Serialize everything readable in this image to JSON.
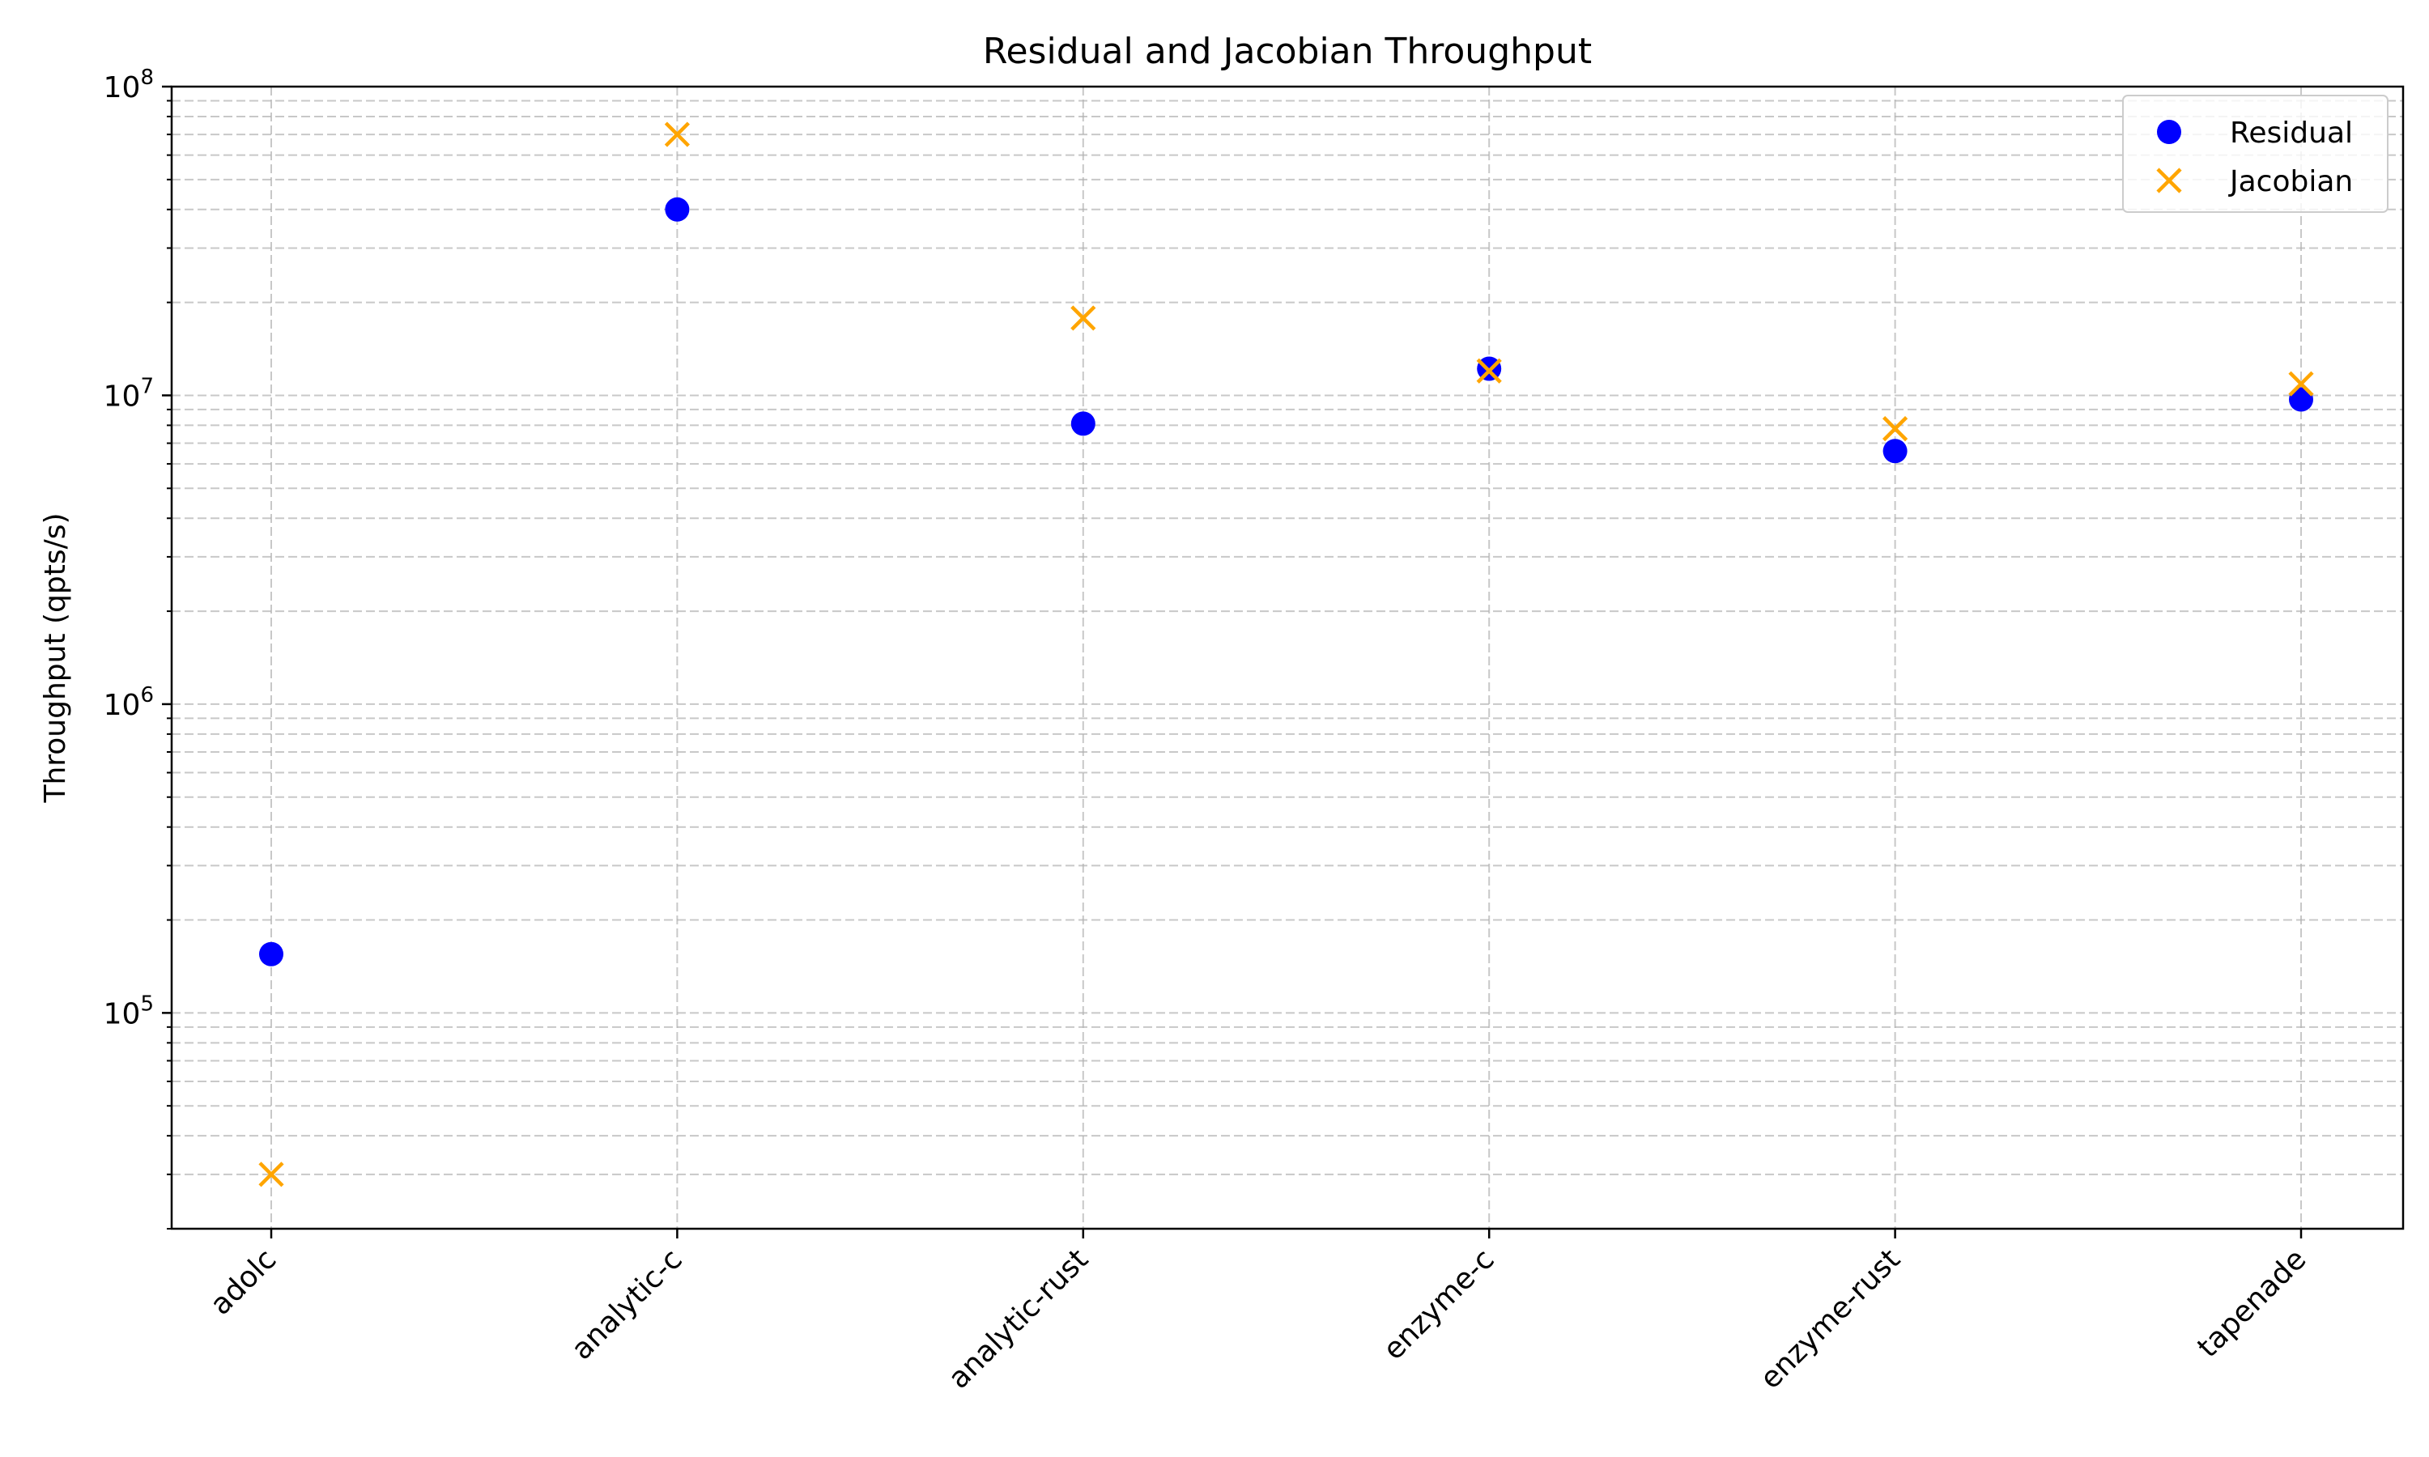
{
  "chart_data": {
    "type": "scatter",
    "title": "Residual and Jacobian Throughput",
    "xlabel": "",
    "ylabel": "Throughput (qpts/s)",
    "y_scale": "log",
    "ylim": [
      20000,
      100000000
    ],
    "y_ticks": [
      {
        "value": 100000,
        "base": "10",
        "exp": "5"
      },
      {
        "value": 1000000,
        "base": "10",
        "exp": "6"
      },
      {
        "value": 10000000,
        "base": "10",
        "exp": "7"
      },
      {
        "value": 100000000,
        "base": "10",
        "exp": "8"
      }
    ],
    "categories": [
      "adolc",
      "analytic-c",
      "analytic-rust",
      "enzyme-c",
      "enzyme-rust",
      "tapenade"
    ],
    "series": [
      {
        "name": "Residual",
        "marker": "circle",
        "color": "#0000ff",
        "values": [
          155000,
          40000000,
          8100000,
          12200000,
          6600000,
          9700000
        ]
      },
      {
        "name": "Jacobian",
        "marker": "x",
        "color": "#ffa500",
        "values": [
          30000,
          70000000,
          17800000,
          12000000,
          7800000,
          10900000
        ]
      }
    ],
    "grid": true,
    "legend_position": "top-right"
  }
}
